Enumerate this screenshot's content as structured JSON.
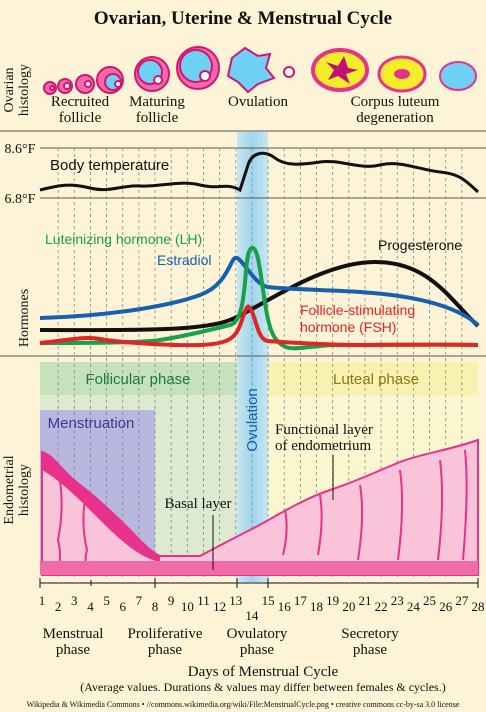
{
  "title": "Ovarian, Uterine & Menstrual Cycle",
  "row_labels": {
    "ovarian": [
      "Ovarian",
      "histology"
    ],
    "hormones": "Hormones",
    "endometrial": [
      "Endometrial",
      "histology"
    ]
  },
  "ovarian_labels": [
    [
      "Recruited",
      "follicle"
    ],
    [
      "Maturing",
      "follicle"
    ],
    [
      "Ovulation"
    ],
    [
      "Corpus luteum",
      "degeneration"
    ]
  ],
  "temperature": {
    "high": "8.6°F",
    "low": "6.8°F",
    "label": "Body temperature"
  },
  "hormones": {
    "lh": "Luteinizing hormone (LH)",
    "estradiol": "Estradiol",
    "progesterone": "Progesterone",
    "fsh": [
      "Follicle-stimulating",
      "hormone (FSH)"
    ]
  },
  "phases": {
    "follicular": "Follicular phase",
    "ovulation": "Ovulation",
    "luteal": "Luteal phase",
    "menstruation": "Menstruation"
  },
  "endometrium": {
    "functional": [
      "Functional layer",
      "of endometrium"
    ],
    "basal": "Basal layer"
  },
  "days": [
    "1",
    "2",
    "3",
    "4",
    "5",
    "6",
    "7",
    "8",
    "9",
    "10",
    "11",
    "12",
    "13",
    "14",
    "15",
    "16",
    "17",
    "18",
    "19",
    "20",
    "21",
    "22",
    "23",
    "24",
    "25",
    "26",
    "27",
    "28"
  ],
  "cycle_phases": [
    [
      "Menstrual",
      "phase"
    ],
    [
      "Proliferative",
      "phase"
    ],
    [
      "Ovulatory",
      "phase"
    ],
    [
      "Secretory",
      "phase"
    ]
  ],
  "axis_title": "Days of Menstrual Cycle",
  "note": "(Average values. Durations & values may differ between females & cycles.)",
  "credit": "Wikipedia & Wikimedia Commons • //commons.wikimedia.org/wiki/File:MenstrualCycle.png • creative commons cc-by-sa 3.0 license"
}
